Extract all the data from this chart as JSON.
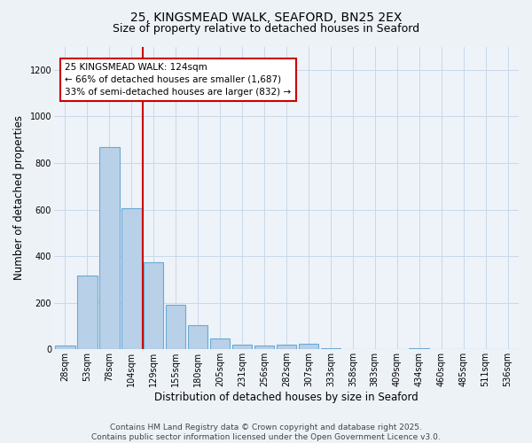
{
  "title": "25, KINGSMEAD WALK, SEAFORD, BN25 2EX",
  "subtitle": "Size of property relative to detached houses in Seaford",
  "xlabel": "Distribution of detached houses by size in Seaford",
  "ylabel": "Number of detached properties",
  "categories": [
    "28sqm",
    "53sqm",
    "78sqm",
    "104sqm",
    "129sqm",
    "155sqm",
    "180sqm",
    "205sqm",
    "231sqm",
    "256sqm",
    "282sqm",
    "307sqm",
    "333sqm",
    "358sqm",
    "383sqm",
    "409sqm",
    "434sqm",
    "460sqm",
    "485sqm",
    "511sqm",
    "536sqm"
  ],
  "values": [
    15,
    315,
    870,
    605,
    375,
    190,
    105,
    45,
    20,
    15,
    20,
    25,
    5,
    0,
    0,
    0,
    5,
    0,
    0,
    0,
    0
  ],
  "bar_color": "#b8d0e8",
  "bar_edge_color": "#6aaad4",
  "red_line_x": 3.5,
  "red_line_label": "25 KINGSMEAD WALK: 124sqm",
  "annotation_line2": "← 66% of detached houses are smaller (1,687)",
  "annotation_line3": "33% of semi-detached houses are larger (832) →",
  "annotation_box_color": "#ffffff",
  "annotation_box_edge": "#cc0000",
  "ylim": [
    0,
    1300
  ],
  "yticks": [
    0,
    200,
    400,
    600,
    800,
    1000,
    1200
  ],
  "footer_line1": "Contains HM Land Registry data © Crown copyright and database right 2025.",
  "footer_line2": "Contains public sector information licensed under the Open Government Licence v3.0.",
  "background_color": "#edf2f7",
  "plot_bg_color": "#eef3f9",
  "grid_color": "#c8d8e8",
  "title_fontsize": 10,
  "subtitle_fontsize": 9,
  "axis_label_fontsize": 8.5,
  "tick_fontsize": 7,
  "annot_fontsize": 7.5,
  "footer_fontsize": 6.5
}
